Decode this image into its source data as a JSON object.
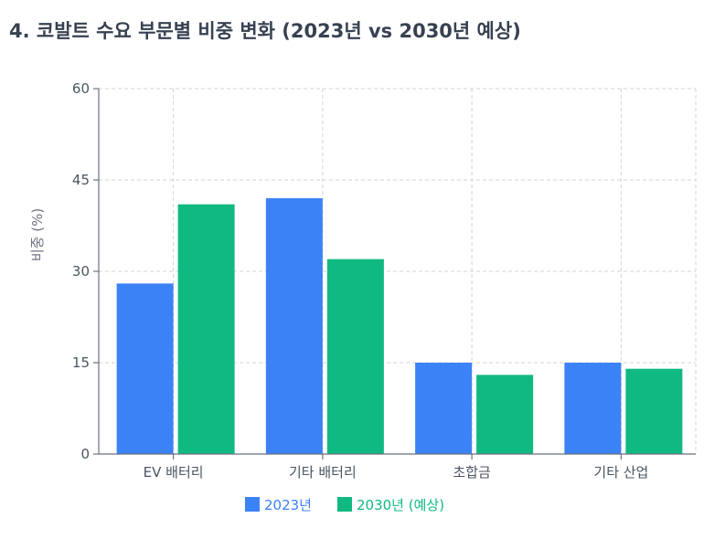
{
  "title": "4. 코발트 수요 부문별 비중 변화 (2023년 vs 2030년 예상)",
  "chart_data": {
    "type": "bar",
    "categories": [
      "EV 배터리",
      "기타 배터리",
      "초합금",
      "기타 산업"
    ],
    "series": [
      {
        "name": "2023년",
        "values": [
          28,
          42,
          15,
          15
        ],
        "color": "#3b82f6"
      },
      {
        "name": "2030년 (예상)",
        "values": [
          41,
          32,
          13,
          14
        ],
        "color": "#10b981"
      }
    ],
    "ylabel": "비중 (%)",
    "xlabel": "",
    "ylim": [
      0,
      60
    ],
    "yticks": [
      0,
      15,
      30,
      45,
      60
    ],
    "grid": true,
    "legend_position": "bottom"
  }
}
